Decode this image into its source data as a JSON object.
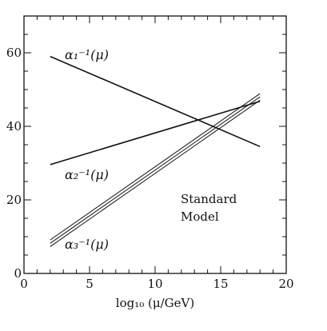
{
  "chart_data": {
    "type": "line",
    "xlabel": "log₁₀ (μ/GeV)",
    "ylabel": "",
    "xlim": [
      0,
      20
    ],
    "ylim": [
      0,
      70
    ],
    "x_ticks": [
      "0",
      "5",
      "10",
      "15",
      "20"
    ],
    "y_ticks": [
      "0",
      "20",
      "40",
      "60"
    ],
    "grid": false,
    "series": [
      {
        "name": "α₁⁻¹(μ)",
        "x": [
          2,
          18
        ],
        "y": [
          59,
          34.5
        ],
        "band": false
      },
      {
        "name": "α₂⁻¹(μ)",
        "x": [
          2,
          18
        ],
        "y": [
          29.6,
          46.8
        ],
        "band": false
      },
      {
        "name": "α₃⁻¹(μ)",
        "x": [
          2,
          18
        ],
        "y": [
          8.2,
          48
        ],
        "band": true,
        "band_spread": 0.9
      }
    ],
    "annotations": [
      "Standard",
      "Model"
    ],
    "line_color": "#111111"
  }
}
